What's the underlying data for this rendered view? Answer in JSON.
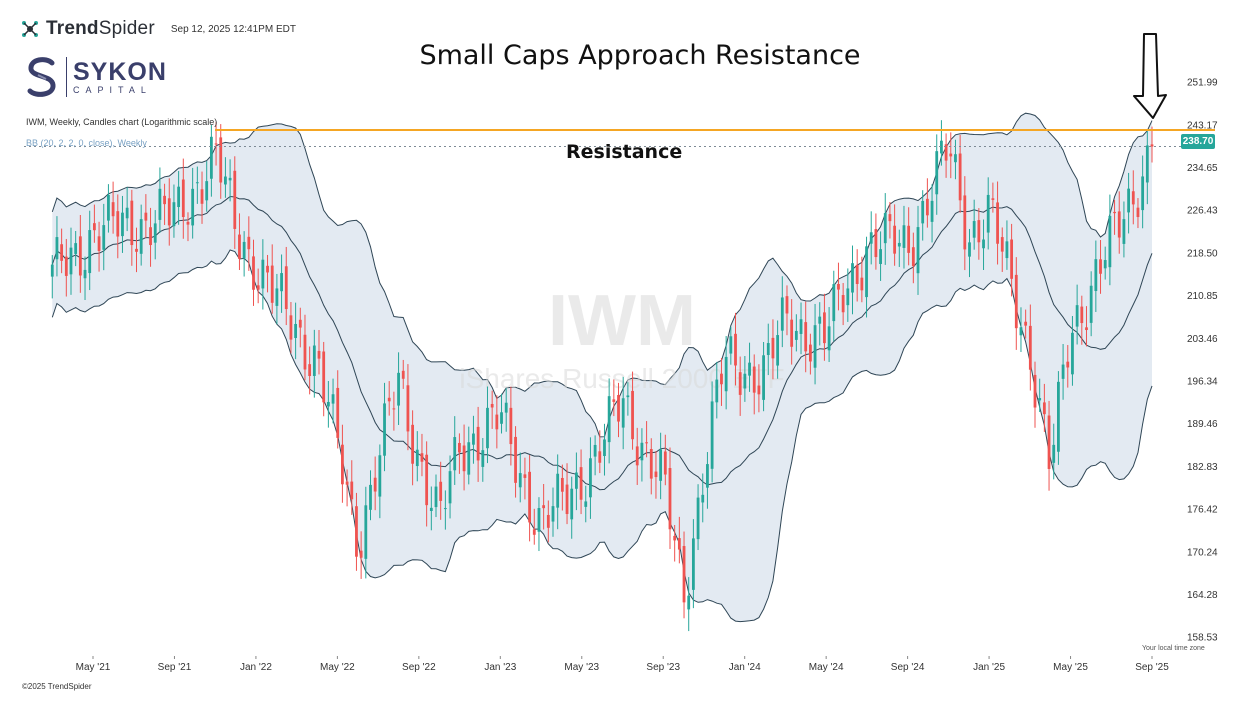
{
  "brand": {
    "name_bold": "Trend",
    "name_thin": "Spider",
    "datetime": "Sep 12, 2025 12:41PM EDT"
  },
  "logo": {
    "name": "SYKON",
    "sub": "CAPITAL"
  },
  "footer": "©2025 TrendSpider",
  "timezone_note": "Your local time zone",
  "colors": {
    "up": "#26a69a",
    "down": "#ef5350",
    "band_fill": "#e3eaf2",
    "band_line": "#2f4656",
    "resistance": "#f5a623",
    "badge": "#26a69a"
  },
  "chart_data": {
    "type": "candlestick",
    "title": "Small Caps Approach Resistance",
    "info_line": "IWM, Weekly, Candles chart (Logarithmic scale)",
    "indicator_line": "BB (20, 2, 2, 0, close), Weekly",
    "watermark_symbol": "IWM",
    "watermark_name": "iShares Russell 2000 ETF",
    "scale": "log",
    "ylim": [
      156,
      257
    ],
    "y_ticks": [
      "251.99",
      "243.17",
      "234.65",
      "226.43",
      "218.50",
      "210.85",
      "203.46",
      "196.34",
      "189.46",
      "182.83",
      "176.42",
      "170.24",
      "164.28",
      "158.53"
    ],
    "x_ticks": [
      "May '21",
      "Sep '21",
      "Jan '22",
      "May '22",
      "Sep '22",
      "Jan '23",
      "May '23",
      "Sep '23",
      "Jan '24",
      "May '24",
      "Sep '24",
      "Jan '25",
      "May '25",
      "Sep '25"
    ],
    "last_price": "238.70",
    "resistance": {
      "value": 242,
      "label": "Resistance"
    },
    "annotation": "down arrow at latest bar",
    "close_path": [
      [
        "Mar '21",
        214
      ],
      [
        "May '21",
        222
      ],
      [
        "Jul '21",
        224
      ],
      [
        "Sep '21",
        225
      ],
      [
        "Nov '21",
        237
      ],
      [
        "Dec '21",
        223
      ],
      [
        "Feb '22",
        210
      ],
      [
        "Apr '22",
        200
      ],
      [
        "Jun '22",
        172
      ],
      [
        "Aug '22",
        196
      ],
      [
        "Oct '22",
        174
      ],
      [
        "Nov '22",
        186
      ],
      [
        "Jan '23",
        190
      ],
      [
        "Mar '23",
        174
      ],
      [
        "Apr '23",
        177
      ],
      [
        "Jun '23",
        186
      ],
      [
        "Jul '23",
        193
      ],
      [
        "Sep '23",
        180
      ],
      [
        "Oct '23",
        164
      ],
      [
        "Nov '23",
        183
      ],
      [
        "Dec '23",
        199
      ],
      [
        "Feb '24",
        198
      ],
      [
        "Mar '24",
        206
      ],
      [
        "May '24",
        204
      ],
      [
        "Jul '24",
        220
      ],
      [
        "Sep '24",
        220
      ],
      [
        "Nov '24",
        238
      ],
      [
        "Dec '24",
        222
      ],
      [
        "Jan '25",
        226
      ],
      [
        "Mar '25",
        202
      ],
      [
        "Apr '25",
        182
      ],
      [
        "May '25",
        205
      ],
      [
        "Jul '25",
        220
      ],
      [
        "Aug '25",
        229
      ],
      [
        "Sep '25",
        238.7
      ]
    ]
  }
}
